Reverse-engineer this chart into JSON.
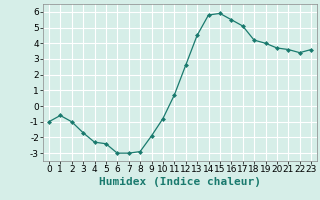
{
  "x": [
    0,
    1,
    2,
    3,
    4,
    5,
    6,
    7,
    8,
    9,
    10,
    11,
    12,
    13,
    14,
    15,
    16,
    17,
    18,
    19,
    20,
    21,
    22,
    23
  ],
  "y": [
    -1.0,
    -0.6,
    -1.0,
    -1.7,
    -2.3,
    -2.4,
    -3.0,
    -3.0,
    -2.9,
    -1.9,
    -0.8,
    0.7,
    2.6,
    4.5,
    5.8,
    5.9,
    5.5,
    5.1,
    4.2,
    4.0,
    3.7,
    3.6,
    3.4,
    3.6
  ],
  "line_color": "#1a7a6e",
  "marker": "D",
  "marker_size": 2.0,
  "bg_color": "#d6eee8",
  "grid_color": "#ffffff",
  "xlabel": "Humidex (Indice chaleur)",
  "xlabel_fontsize": 8,
  "tick_fontsize": 6.5,
  "ylim": [
    -3.5,
    6.5
  ],
  "xlim": [
    -0.5,
    23.5
  ],
  "yticks": [
    -3,
    -2,
    -1,
    0,
    1,
    2,
    3,
    4,
    5,
    6
  ],
  "xticks": [
    0,
    1,
    2,
    3,
    4,
    5,
    6,
    7,
    8,
    9,
    10,
    11,
    12,
    13,
    14,
    15,
    16,
    17,
    18,
    19,
    20,
    21,
    22,
    23
  ]
}
